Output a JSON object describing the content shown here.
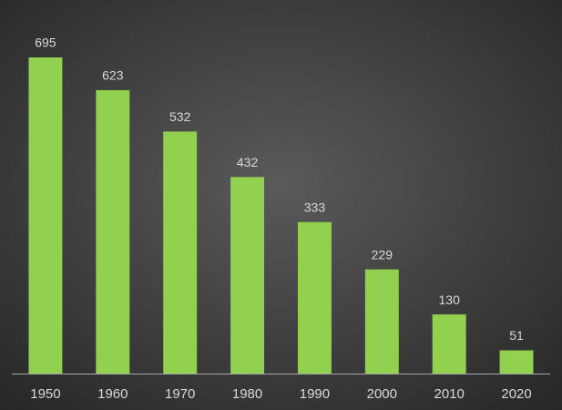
{
  "chart_data": {
    "type": "bar",
    "categories": [
      "1950",
      "1960",
      "1970",
      "1980",
      "1990",
      "2000",
      "2010",
      "2020"
    ],
    "values": [
      695,
      623,
      532,
      432,
      333,
      229,
      130,
      51
    ],
    "color": "#92d050"
  }
}
